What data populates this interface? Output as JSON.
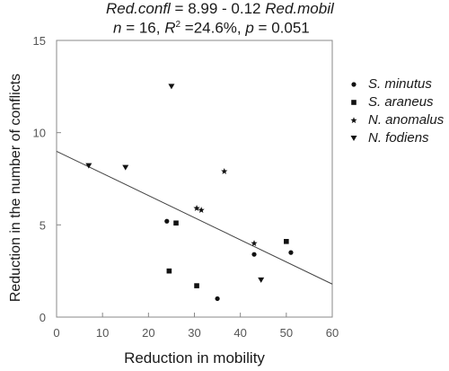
{
  "annotation": {
    "equation_lhs": "Red.confl",
    "equation_mid": " = 8.99 - 0.12 ",
    "equation_rhs": "Red.mobil",
    "stats_n": "n",
    "stats_n_val": " = 16, ",
    "stats_r": "R",
    "stats_r_sup": "2",
    "stats_r_val": " =24.6%, ",
    "stats_p": "p",
    "stats_p_val": " = 0.051"
  },
  "chart_data": {
    "type": "scatter",
    "xlabel": "Reduction in mobility",
    "ylabel": "Reduction in the number of conflicts",
    "xlim": [
      0,
      60
    ],
    "ylim": [
      0,
      15
    ],
    "xticks": [
      "0",
      "10",
      "20",
      "30",
      "40",
      "50",
      "60"
    ],
    "yticks": [
      "0",
      "5",
      "10",
      "15"
    ],
    "grid": false,
    "legend_position": "right",
    "trendline": {
      "intercept": 8.99,
      "slope": -0.12,
      "x_start": 0,
      "x_end": 60
    },
    "series": [
      {
        "name": "S. minutus",
        "marker": "circle",
        "points": [
          [
            24,
            5.2
          ],
          [
            35,
            1.0
          ],
          [
            43,
            3.4
          ],
          [
            51,
            3.5
          ]
        ]
      },
      {
        "name": "S. araneus",
        "marker": "square",
        "points": [
          [
            24.5,
            2.5
          ],
          [
            26,
            5.1
          ],
          [
            30.5,
            1.7
          ],
          [
            50,
            4.1
          ]
        ]
      },
      {
        "name": "N. anomalus",
        "marker": "star",
        "points": [
          [
            30.5,
            5.9
          ],
          [
            31.5,
            5.8
          ],
          [
            36.5,
            7.9
          ],
          [
            43,
            4.0
          ]
        ]
      },
      {
        "name": "N. fodiens",
        "marker": "triangle-down",
        "points": [
          [
            7,
            8.2
          ],
          [
            15,
            8.1
          ],
          [
            25,
            12.5
          ],
          [
            44.5,
            2.0
          ]
        ]
      }
    ]
  }
}
